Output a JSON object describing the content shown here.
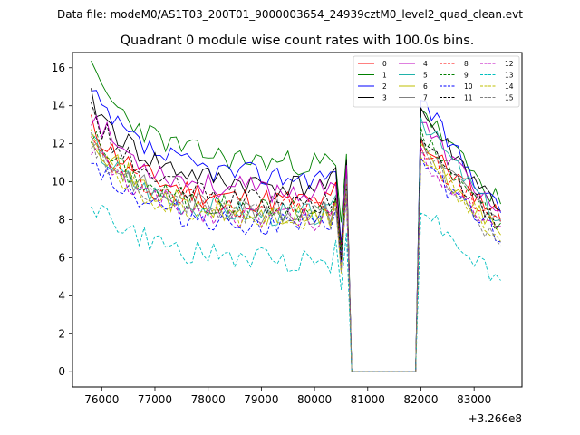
{
  "chart_data": {
    "type": "line",
    "suptitle": "Data file: modeM0/AS1T03_200T01_9000003654_24939cztM0_level2_quad_clean.evt",
    "title": "Quadrant 0 module wise count rates with 100.0s bins.",
    "xlabel": "",
    "ylabel": "",
    "offset_label": "+3.266e8",
    "x_offset": 326600000,
    "xlim": [
      75450,
      83900
    ],
    "ylim": [
      -0.8,
      16.8
    ],
    "x_ticks": [
      76000,
      77000,
      78000,
      79000,
      80000,
      81000,
      82000,
      83000
    ],
    "x_tick_labels": [
      "76000",
      "77000",
      "78000",
      "79000",
      "80000",
      "81000",
      "82000",
      "83000"
    ],
    "y_ticks": [
      0,
      2,
      4,
      6,
      8,
      10,
      12,
      14,
      16
    ],
    "y_tick_labels": [
      "0",
      "2",
      "4",
      "6",
      "8",
      "10",
      "12",
      "14",
      "16"
    ],
    "legend_position": "upper-right",
    "legend_ncol": 4,
    "segment1": {
      "x_start": 75800,
      "x_end": 80600,
      "step": 100
    },
    "gap": {
      "x": [
        80700,
        80800,
        80900,
        81000,
        81100,
        81200,
        81300,
        81400,
        81500,
        81600,
        81700,
        81800,
        81900
      ],
      "value": 0
    },
    "segment2": {
      "x_start": 82000,
      "x_end": 83500,
      "step": 100
    },
    "series": [
      {
        "name": "0",
        "color": "#ff0000",
        "style": "solid",
        "start1": 13.0,
        "plateau1": 8.9,
        "peak": 10.2,
        "start2": 12.2,
        "end2": 8.2,
        "seed": 11
      },
      {
        "name": "1",
        "color": "#008000",
        "style": "solid",
        "start1": 15.8,
        "plateau1": 10.9,
        "peak": 11.0,
        "start2": 14.0,
        "end2": 8.8,
        "seed": 23
      },
      {
        "name": "2",
        "color": "#0000ff",
        "style": "solid",
        "start1": 14.6,
        "plateau1": 10.2,
        "peak": 10.6,
        "start2": 14.5,
        "end2": 8.4,
        "seed": 37
      },
      {
        "name": "3",
        "color": "#000000",
        "style": "solid",
        "start1": 14.3,
        "plateau1": 9.7,
        "peak": 10.8,
        "start2": 13.8,
        "end2": 8.6,
        "seed": 41
      },
      {
        "name": "4",
        "color": "#bf00bf",
        "style": "solid",
        "start1": 13.6,
        "plateau1": 9.4,
        "peak": 10.4,
        "start2": 13.2,
        "end2": 8.3,
        "seed": 53
      },
      {
        "name": "5",
        "color": "#20b2aa",
        "style": "solid",
        "start1": 12.2,
        "plateau1": 8.2,
        "peak": 9.8,
        "start2": 13.5,
        "end2": 7.9,
        "seed": 67
      },
      {
        "name": "6",
        "color": "#bfbf00",
        "style": "solid",
        "start1": 12.7,
        "plateau1": 8.0,
        "peak": 9.6,
        "start2": 11.8,
        "end2": 7.2,
        "seed": 71
      },
      {
        "name": "7",
        "color": "#808080",
        "style": "solid",
        "start1": 12.3,
        "plateau1": 8.3,
        "peak": 9.7,
        "start2": 12.4,
        "end2": 7.6,
        "seed": 83
      },
      {
        "name": "8",
        "color": "#ff0000",
        "style": "dashed",
        "start1": 12.0,
        "plateau1": 8.6,
        "peak": 9.5,
        "start2": 11.8,
        "end2": 7.8,
        "seed": 97
      },
      {
        "name": "9",
        "color": "#008000",
        "style": "dashed",
        "start1": 12.5,
        "plateau1": 8.4,
        "peak": 9.4,
        "start2": 12.6,
        "end2": 7.7,
        "seed": 101
      },
      {
        "name": "10",
        "color": "#0000ff",
        "style": "dashed",
        "start1": 11.4,
        "plateau1": 7.6,
        "peak": 8.8,
        "start2": 11.2,
        "end2": 7.0,
        "seed": 113
      },
      {
        "name": "11",
        "color": "#000000",
        "style": "dashed",
        "start1": 13.7,
        "plateau1": 8.7,
        "peak": 9.3,
        "start2": 12.2,
        "end2": 7.9,
        "seed": 127
      },
      {
        "name": "12",
        "color": "#bf00bf",
        "style": "dashed",
        "start1": 11.8,
        "plateau1": 8.0,
        "peak": 9.1,
        "start2": 11.5,
        "end2": 7.4,
        "seed": 131
      },
      {
        "name": "13",
        "color": "#00bfbf",
        "style": "dashed",
        "start1": 9.0,
        "plateau1": 5.8,
        "peak": 7.0,
        "start2": 8.8,
        "end2": 4.7,
        "seed": 149
      },
      {
        "name": "14",
        "color": "#bfbf00",
        "style": "dashed",
        "start1": 12.2,
        "plateau1": 7.9,
        "peak": 9.0,
        "start2": 11.6,
        "end2": 7.1,
        "seed": 151
      },
      {
        "name": "15",
        "color": "#808080",
        "style": "dashed",
        "start1": 12.0,
        "plateau1": 8.1,
        "peak": 9.2,
        "start2": 12.0,
        "end2": 6.6,
        "seed": 163
      }
    ]
  }
}
